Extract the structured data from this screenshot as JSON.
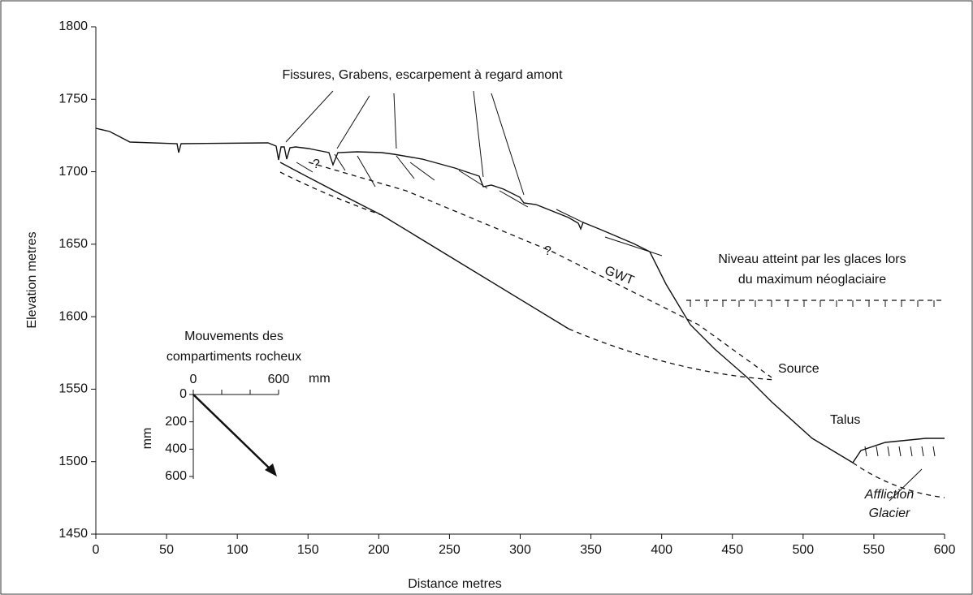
{
  "chart_data": {
    "type": "profile",
    "xlabel": "Distance    metres",
    "ylabel": "Elevation    metres",
    "xlim": [
      0,
      600
    ],
    "ylim": [
      1450,
      1800
    ],
    "xticks": [
      0,
      50,
      100,
      150,
      200,
      250,
      300,
      350,
      400,
      450,
      500,
      550,
      600
    ],
    "yticks": [
      1450,
      1500,
      1550,
      1600,
      1650,
      1700,
      1750,
      1800
    ],
    "annotations": {
      "fissures": "Fissures, Grabens, escarpement à regard amont",
      "ice_1": "Niveau atteint par les glaces lors",
      "ice_2": "du maximum néoglaciaire",
      "gwt": "GWT",
      "q1": "?",
      "q2": "?",
      "source": "Source",
      "talus": "Talus",
      "glacier_1": "Affliction",
      "glacier_2": "Glacier"
    }
  },
  "inset": {
    "title_1": "Mouvements des",
    "title_2": "compartiments rocheux",
    "xlim": [
      0,
      600
    ],
    "ylim": [
      0,
      600
    ],
    "xticks": [
      0,
      600
    ],
    "yticks": [
      0,
      200,
      400,
      600
    ],
    "xunit": "mm",
    "yunit": "mm"
  }
}
